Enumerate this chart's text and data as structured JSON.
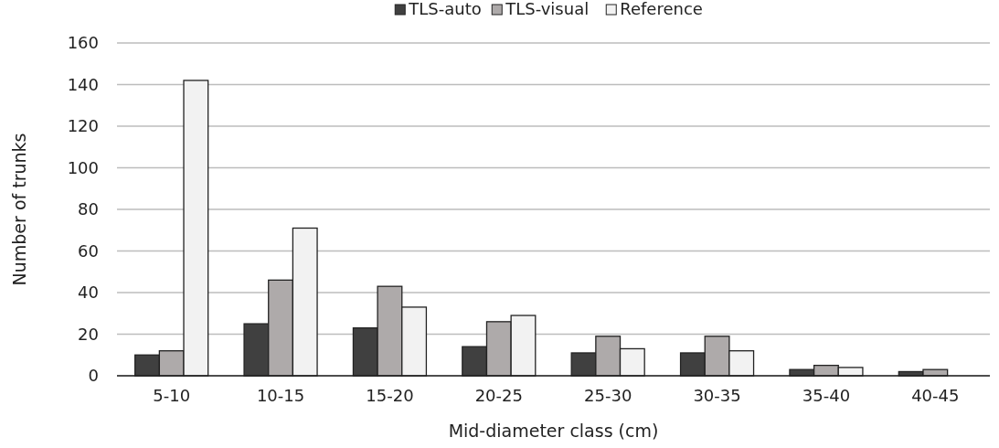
{
  "chart_data": {
    "type": "bar",
    "xlabel": "Mid-diameter class (cm)",
    "ylabel": "Number of trunks",
    "categories": [
      "5-10",
      "10-15",
      "15-20",
      "20-25",
      "25-30",
      "30-35",
      "35-40",
      "40-45"
    ],
    "series": [
      {
        "name": "TLS-auto",
        "color": "#404040",
        "values": [
          10,
          25,
          23,
          14,
          11,
          11,
          3,
          2
        ]
      },
      {
        "name": "TLS-visual",
        "color": "#aeaaaa",
        "values": [
          12,
          46,
          43,
          26,
          19,
          19,
          5,
          3
        ]
      },
      {
        "name": "Reference",
        "color": "#f2f2f2",
        "values": [
          142,
          71,
          33,
          29,
          13,
          12,
          4,
          null
        ]
      }
    ],
    "ylim": [
      0,
      160
    ],
    "yticks": [
      0,
      20,
      40,
      60,
      80,
      100,
      120,
      140,
      160
    ],
    "grid": "y",
    "legend": "top"
  }
}
